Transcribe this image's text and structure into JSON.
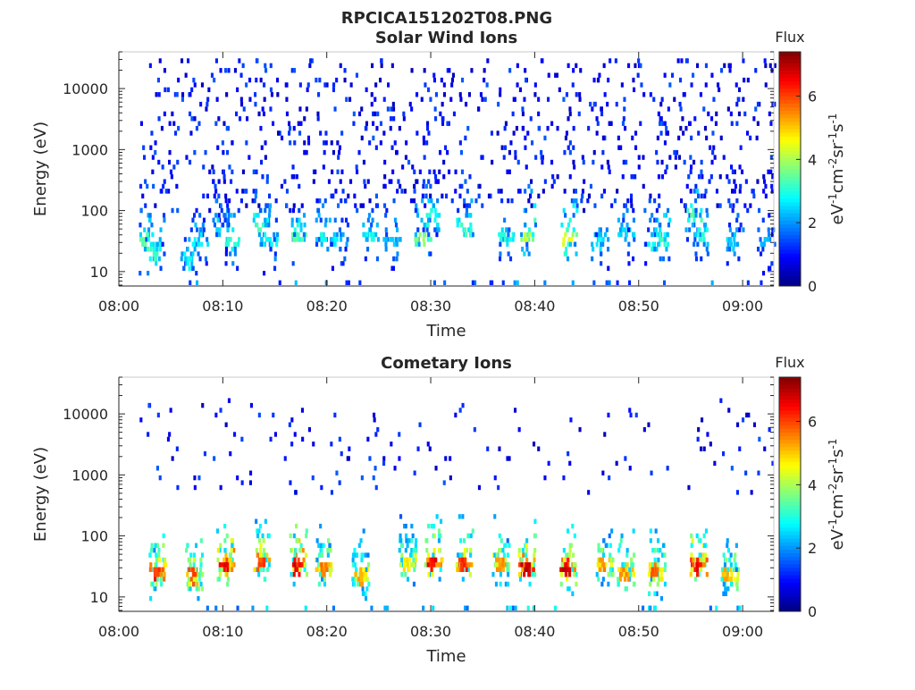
{
  "figure": {
    "title": "RPCICA151202T08.PNG"
  },
  "colormap": "jet",
  "chart_data": [
    {
      "type": "heatmap",
      "title": "Solar Wind Ions",
      "xlabel": "Time",
      "ylabel": "Energy (eV)",
      "x_ticks": [
        "08:00",
        "08:10",
        "08:20",
        "08:30",
        "08:40",
        "08:50",
        "09:00"
      ],
      "xlim_minutes": [
        0,
        63
      ],
      "y_scale": "log",
      "y_ticks": [
        "10",
        "100",
        "1000",
        "10000"
      ],
      "ylim": [
        5.8,
        40000
      ],
      "colorbar": {
        "label": "Flux",
        "units": "eV⁻¹cm⁻²sr⁻¹s⁻¹",
        "ticks": [
          "0",
          "2",
          "4",
          "6"
        ],
        "range": [
          0,
          7.4
        ]
      },
      "description_of_data": "Sparse low-flux (0-2) scatter at 100-30000 eV; moderate flux (2-5) bursts near 20-300 eV at roughly 2-4 minute intervals; occasional points near 6 eV.",
      "bursts": [
        {
          "t": 2.5,
          "e": 30,
          "v": 3.6
        },
        {
          "t": 3.3,
          "e": 20,
          "v": 3.4
        },
        {
          "t": 6.5,
          "e": 15,
          "v": 3.0
        },
        {
          "t": 7.5,
          "e": 30,
          "v": 2.8
        },
        {
          "t": 9.5,
          "e": 60,
          "v": 2.6
        },
        {
          "t": 10.5,
          "e": 30,
          "v": 3.2
        },
        {
          "t": 13.5,
          "e": 60,
          "v": 3.4
        },
        {
          "t": 14.2,
          "e": 30,
          "v": 3.0
        },
        {
          "t": 17.0,
          "e": 35,
          "v": 3.6
        },
        {
          "t": 19.5,
          "e": 35,
          "v": 3.0
        },
        {
          "t": 21.0,
          "e": 30,
          "v": 2.8
        },
        {
          "t": 24.0,
          "e": 35,
          "v": 3.0
        },
        {
          "t": 26.0,
          "e": 30,
          "v": 2.6
        },
        {
          "t": 29.0,
          "e": 35,
          "v": 4.0
        },
        {
          "t": 29.8,
          "e": 80,
          "v": 3.2
        },
        {
          "t": 33.0,
          "e": 50,
          "v": 3.4
        },
        {
          "t": 37.0,
          "e": 35,
          "v": 3.2
        },
        {
          "t": 39.0,
          "e": 35,
          "v": 4.4
        },
        {
          "t": 43.0,
          "e": 35,
          "v": 4.6
        },
        {
          "t": 46.0,
          "e": 30,
          "v": 2.8
        },
        {
          "t": 48.5,
          "e": 40,
          "v": 2.6
        },
        {
          "t": 51.0,
          "e": 30,
          "v": 3.0
        },
        {
          "t": 52.0,
          "e": 35,
          "v": 3.4
        },
        {
          "t": 55.0,
          "e": 80,
          "v": 3.6
        },
        {
          "t": 55.8,
          "e": 40,
          "v": 3.2
        },
        {
          "t": 59.0,
          "e": 30,
          "v": 2.6
        },
        {
          "t": 62.0,
          "e": 30,
          "v": 2.4
        }
      ]
    },
    {
      "type": "heatmap",
      "title": "Cometary Ions",
      "xlabel": "Time",
      "ylabel": "Energy (eV)",
      "x_ticks": [
        "08:00",
        "08:10",
        "08:20",
        "08:30",
        "08:40",
        "08:50",
        "09:00"
      ],
      "xlim_minutes": [
        0,
        63
      ],
      "y_scale": "log",
      "y_ticks": [
        "10",
        "100",
        "1000",
        "10000"
      ],
      "ylim": [
        5.8,
        40000
      ],
      "colorbar": {
        "label": "Flux",
        "units": "eV⁻¹cm⁻²sr⁻¹s⁻¹",
        "ticks": [
          "0",
          "2",
          "4",
          "6"
        ],
        "range": [
          0,
          7.4
        ]
      },
      "description_of_data": "High-flux (5-7) bursts centred near 20-40 eV, each with a tail rising to ~300 eV, at roughly 3-4 minute intervals; sparse low-flux points above 500 eV.",
      "bursts": [
        {
          "t": 3.5,
          "e": 25,
          "v": 6.4
        },
        {
          "t": 7.0,
          "e": 22,
          "v": 6.2
        },
        {
          "t": 10.0,
          "e": 30,
          "v": 6.8
        },
        {
          "t": 13.5,
          "e": 40,
          "v": 6.2
        },
        {
          "t": 17.0,
          "e": 33,
          "v": 7.0
        },
        {
          "t": 19.5,
          "e": 30,
          "v": 5.8
        },
        {
          "t": 23.0,
          "e": 22,
          "v": 5.4
        },
        {
          "t": 27.5,
          "e": 35,
          "v": 5.0
        },
        {
          "t": 30.0,
          "e": 35,
          "v": 6.8
        },
        {
          "t": 33.0,
          "e": 35,
          "v": 6.4
        },
        {
          "t": 36.5,
          "e": 35,
          "v": 5.6
        },
        {
          "t": 39.0,
          "e": 30,
          "v": 7.0
        },
        {
          "t": 43.0,
          "e": 30,
          "v": 7.0
        },
        {
          "t": 46.5,
          "e": 35,
          "v": 5.6
        },
        {
          "t": 48.5,
          "e": 25,
          "v": 5.6
        },
        {
          "t": 51.5,
          "e": 25,
          "v": 6.0
        },
        {
          "t": 55.5,
          "e": 33,
          "v": 6.8
        },
        {
          "t": 58.5,
          "e": 22,
          "v": 5.4
        }
      ]
    }
  ]
}
